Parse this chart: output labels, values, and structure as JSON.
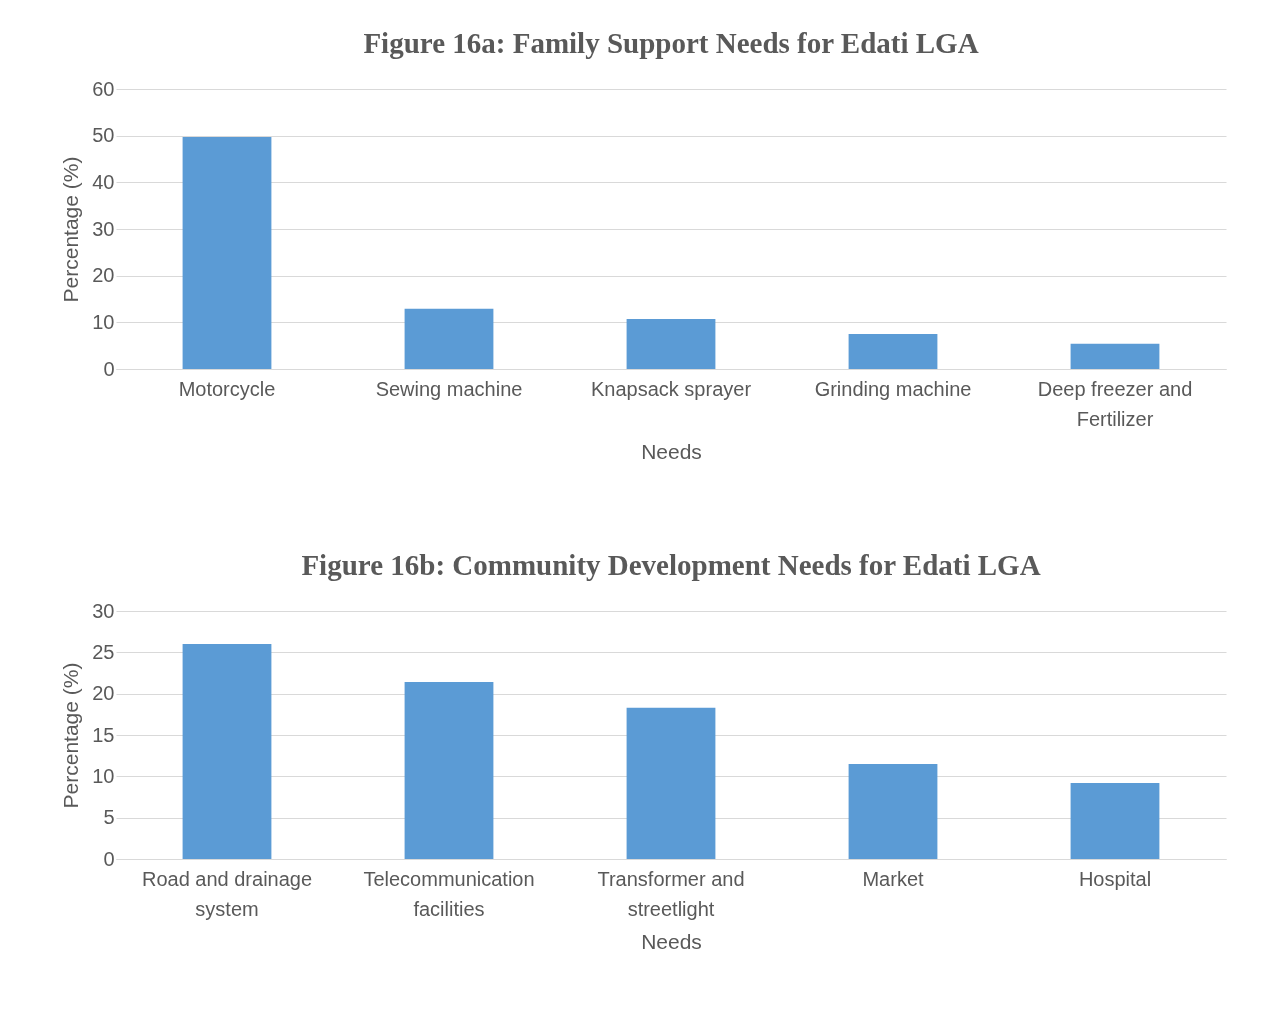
{
  "chart_data": [
    {
      "type": "bar",
      "title": "Figure 16a: Family Support Needs for Edati LGA",
      "xlabel": "Needs",
      "ylabel": "Percentage (%)",
      "categories": [
        "Motorcycle",
        "Sewing machine",
        "Knapsack sprayer",
        "Grinding machine",
        "Deep freezer and Fertilizer"
      ],
      "values": [
        49.7,
        12.9,
        10.7,
        7.5,
        5.4
      ],
      "color": "#5b9bd5",
      "ylim": [
        0,
        60
      ],
      "yticks": [
        0,
        10,
        20,
        30,
        40,
        50,
        60
      ],
      "grid": "y"
    },
    {
      "type": "bar",
      "title": "Figure 16b: Community Development Needs for Edati LGA",
      "xlabel": "Needs",
      "ylabel": "Percentage (%)",
      "categories": [
        "Road and drainage system",
        "Telecommunication facilities",
        "Transformer and streetlight",
        "Market",
        "Hospital"
      ],
      "values": [
        26.0,
        21.4,
        18.3,
        11.5,
        9.2
      ],
      "color": "#5b9bd5",
      "ylim": [
        0,
        30
      ],
      "yticks": [
        0,
        5,
        10,
        15,
        20,
        25,
        30
      ],
      "grid": "y"
    }
  ]
}
